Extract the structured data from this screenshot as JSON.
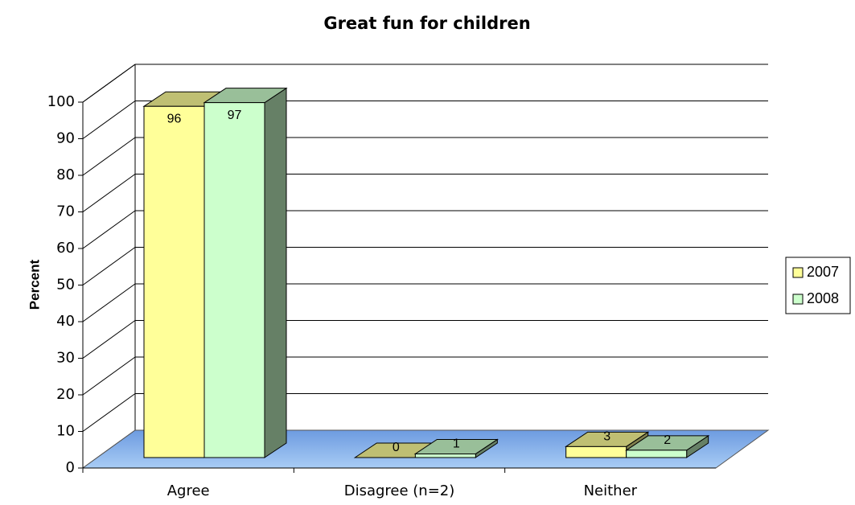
{
  "chart_data": {
    "type": "bar3d",
    "title": "Great fun for children",
    "y_label": "Percent",
    "categories": [
      "Agree",
      "Disagree (n=2)",
      "Neither"
    ],
    "series": [
      {
        "name": "2007",
        "color": "#ffff99",
        "values": [
          96,
          0,
          3
        ]
      },
      {
        "name": "2008",
        "color": "#ccffcc",
        "values": [
          97,
          1,
          2
        ]
      }
    ],
    "ylim": [
      0,
      100
    ],
    "yticks": [
      0,
      10,
      20,
      30,
      40,
      50,
      60,
      70,
      80,
      90,
      100
    ],
    "grid": true,
    "legend": "right"
  }
}
